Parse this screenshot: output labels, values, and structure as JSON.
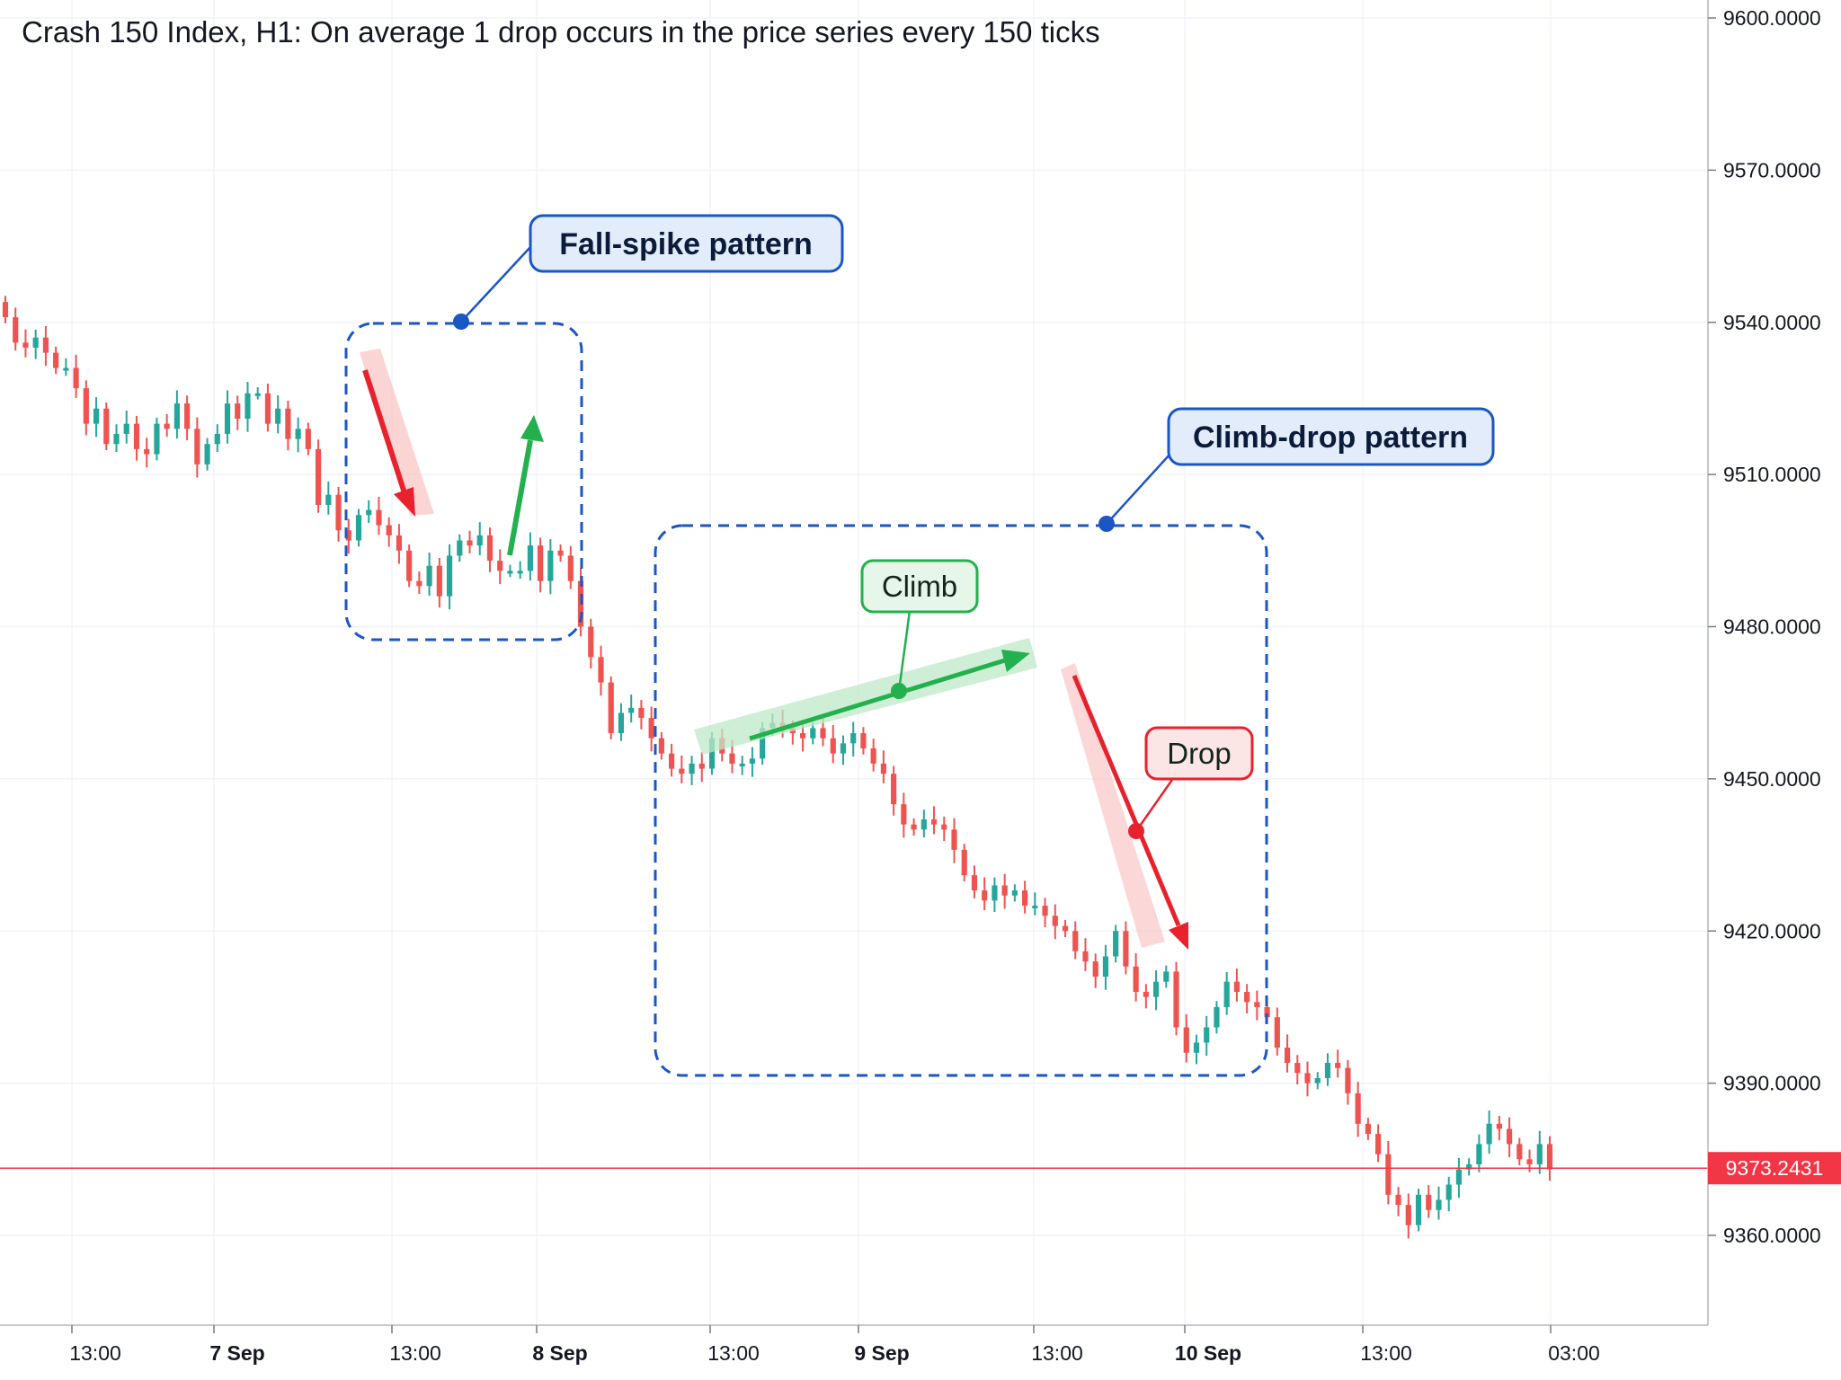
{
  "chart_data": {
    "type": "candlestick",
    "title": "Crash 150 Index, H1: On average 1 drop occurs in the price series every 150 ticks",
    "x_tick_labels": [
      {
        "label": "13:00",
        "bold": false
      },
      {
        "label": "7 Sep",
        "bold": true
      },
      {
        "label": "13:00",
        "bold": false
      },
      {
        "label": "8 Sep",
        "bold": true
      },
      {
        "label": "13:00",
        "bold": false
      },
      {
        "label": "9 Sep",
        "bold": true
      },
      {
        "label": "13:00",
        "bold": false
      },
      {
        "label": "10 Sep",
        "bold": true
      },
      {
        "label": "13:00",
        "bold": false
      },
      {
        "label": "03:00",
        "bold": false
      }
    ],
    "y_tick_labels": [
      "9600.0000",
      "9570.0000",
      "9540.0000",
      "9510.0000",
      "9480.0000",
      "9450.0000",
      "9420.0000",
      "9390.0000",
      "9360.0000"
    ],
    "y_ticks": [
      9600,
      9570,
      9540,
      9510,
      9480,
      9450,
      9420,
      9390,
      9360
    ],
    "ylim": [
      9335,
      9604
    ],
    "current_price": 9373.2431,
    "current_price_label": "9373.2431",
    "colors": {
      "up": "#26a69a",
      "down": "#ef5350",
      "current_line": "#f23645",
      "callout_blue": "#1a56c4",
      "climb": "#22b14c",
      "drop": "#e8222d"
    },
    "close_path": [
      9541,
      9536,
      9535,
      9537,
      9534,
      9531,
      9531,
      9527,
      9520,
      9523,
      9516,
      9518,
      9520,
      9515,
      9514,
      9520,
      9519,
      9524,
      9519,
      9512,
      9516,
      9518,
      9524,
      9521,
      9526,
      9526,
      9520,
      9523,
      9517,
      9519,
      9515,
      9504,
      9506,
      9499,
      9497,
      9502,
      9503,
      9500,
      9498,
      9495,
      9489,
      9488,
      9492,
      9486,
      9494,
      9497,
      9496,
      9498,
      9493,
      9491,
      9491,
      9491,
      9496,
      9489,
      9495,
      9494,
      9489,
      9480,
      9474,
      9469,
      9459,
      9463,
      9464,
      9462,
      9458,
      9455,
      9452,
      9451,
      9453,
      9452,
      9458,
      9455,
      9453,
      9453,
      9454,
      9460,
      9461,
      9460,
      9459,
      9458,
      9460,
      9458,
      9455,
      9457,
      9459,
      9456,
      9453,
      9451,
      9445,
      9441,
      9440,
      9442,
      9441,
      9440,
      9436,
      9431,
      9428,
      9426,
      9429,
      9427,
      9428,
      9425,
      9425,
      9423,
      9421,
      9420,
      9416,
      9414,
      9411,
      9415,
      9420,
      9413,
      9408,
      9407,
      9410,
      9412,
      9401,
      9396,
      9398,
      9401,
      9405,
      9410,
      9408,
      9406,
      9405,
      9403,
      9397,
      9394,
      9392,
      9390,
      9391,
      9394,
      9393,
      9388,
      9382,
      9380,
      9376,
      9368,
      9366,
      9362,
      9368,
      9365,
      9367,
      9370,
      9373,
      9374,
      9378,
      9382,
      9381,
      9378,
      9375,
      9374,
      9378,
      9373
    ],
    "annotations": {
      "fall_spike": {
        "label": "Fall-spike pattern"
      },
      "climb_drop": {
        "label": "Climb-drop pattern"
      },
      "climb": {
        "label": "Climb"
      },
      "drop": {
        "label": "Drop"
      }
    }
  }
}
